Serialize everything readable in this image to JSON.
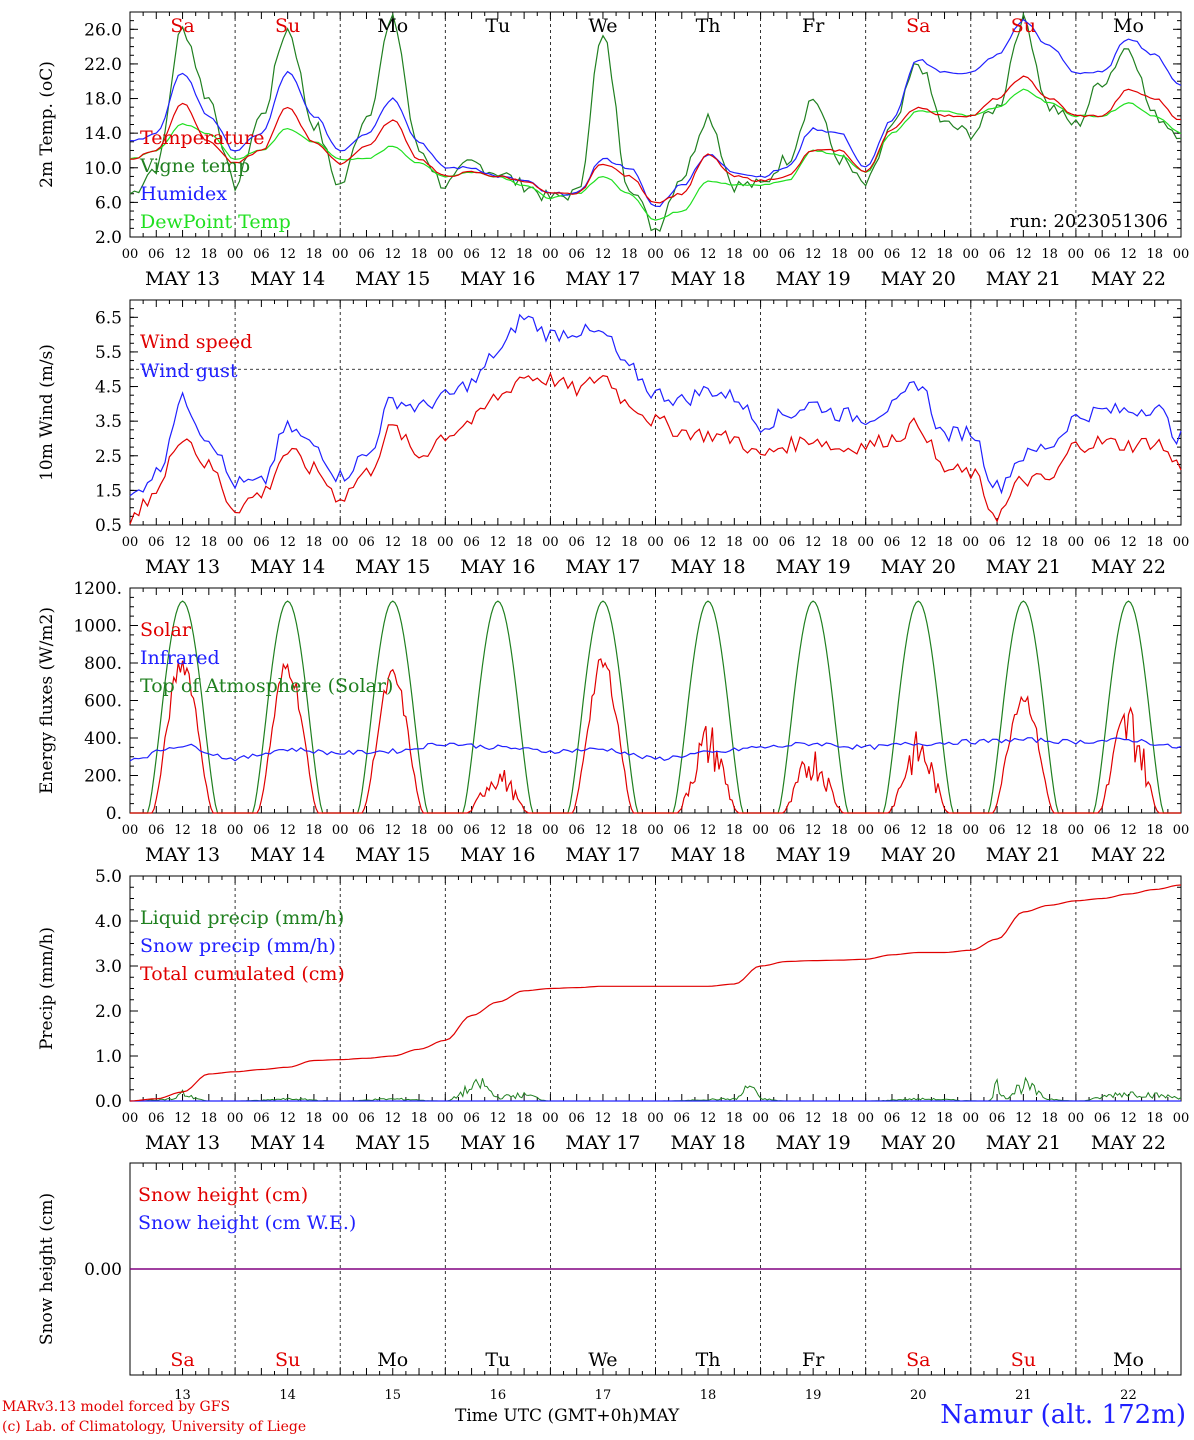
{
  "run_label": "run: 2023051306",
  "days": [
    "MAY 13",
    "MAY 14",
    "MAY 15",
    "MAY 16",
    "MAY 17",
    "MAY 18",
    "MAY 19",
    "MAY 20",
    "MAY 21",
    "MAY 22"
  ],
  "weekdays": [
    "Sa",
    "Su",
    "Mo",
    "Tu",
    "We",
    "Th",
    "Fr",
    "Sa",
    "Su",
    "Mo"
  ],
  "weekday_colors": [
    "#e00000",
    "#e00000",
    "#000000",
    "#000000",
    "#000000",
    "#000000",
    "#000000",
    "#e00000",
    "#e00000",
    "#000000"
  ],
  "hour_ticks": [
    "00",
    "06",
    "12",
    "18"
  ],
  "bottom_day_numbers": [
    "13",
    "14",
    "15",
    "16",
    "17",
    "18",
    "19",
    "20",
    "21",
    "22"
  ],
  "x_axis_title": "Time UTC (GMT+0h)",
  "month_label": "MAY",
  "footer": {
    "credit_line1": "MARv3.13 model forced by GFS",
    "credit_line2": "(c) Lab. of Climatology, University of Liege",
    "station": "Namur (alt. 172m)"
  },
  "colors": {
    "red": "#e00000",
    "green": "#208020",
    "blue": "#2020ff",
    "lightgreen": "#20e020",
    "purple": "#800080"
  },
  "chart_data": [
    {
      "type": "line",
      "ylabel": "2m Temp. (oC)",
      "ylim": [
        2.0,
        28.0
      ],
      "yticks": [
        "2.0",
        "6.0",
        "10.0",
        "14.0",
        "18.0",
        "22.0",
        "26.0"
      ],
      "x_unit": "hours since May 13 00 UTC",
      "series": [
        {
          "name": "Temperature",
          "color": "#e00000",
          "x": [
            0,
            6,
            12,
            18,
            24,
            30,
            36,
            42,
            48,
            54,
            60,
            66,
            72,
            78,
            84,
            90,
            96,
            102,
            108,
            114,
            120,
            126,
            132,
            138,
            144,
            150,
            156,
            162,
            168,
            174,
            180,
            186,
            192,
            198,
            204,
            210,
            216,
            222,
            228,
            234,
            240
          ],
          "values": [
            11,
            12,
            17.5,
            13,
            10.5,
            12,
            17,
            13,
            10.5,
            12.5,
            15.5,
            11,
            9,
            9.5,
            9,
            8.5,
            7,
            7,
            10.5,
            9,
            6,
            7,
            11.5,
            9,
            8.5,
            9,
            12,
            12,
            9.5,
            14.5,
            17,
            16,
            16,
            18,
            20.5,
            18,
            16,
            16,
            19,
            18,
            15.5
          ]
        },
        {
          "name": "Vigne temp",
          "color": "#208020",
          "x": [
            0,
            6,
            12,
            18,
            24,
            30,
            36,
            42,
            48,
            54,
            60,
            66,
            72,
            78,
            84,
            90,
            96,
            102,
            108,
            114,
            120,
            126,
            132,
            138,
            144,
            150,
            156,
            162,
            168,
            174,
            180,
            186,
            192,
            198,
            204,
            210,
            216,
            222,
            228,
            234,
            240
          ],
          "values": [
            7,
            10,
            26,
            18,
            8,
            16,
            26,
            15,
            8,
            16,
            27,
            12,
            8,
            10.5,
            9.5,
            8,
            6.5,
            7,
            25,
            8,
            3,
            9,
            16,
            8,
            8,
            11,
            18,
            11,
            8,
            14.5,
            22,
            15,
            14,
            17,
            27,
            17,
            15,
            20,
            24,
            16,
            14
          ]
        },
        {
          "name": "Humidex",
          "color": "#2020ff",
          "x": [
            0,
            6,
            12,
            18,
            24,
            30,
            36,
            42,
            48,
            54,
            60,
            66,
            72,
            78,
            84,
            90,
            96,
            102,
            108,
            114,
            120,
            126,
            132,
            138,
            144,
            150,
            156,
            162,
            168,
            174,
            180,
            186,
            192,
            198,
            204,
            210,
            216,
            222,
            228,
            234,
            240
          ],
          "values": [
            13,
            14,
            21,
            16,
            12,
            14,
            21,
            16,
            12,
            14,
            18,
            13,
            10,
            10,
            9,
            8.5,
            7,
            7,
            11,
            10,
            5.5,
            8,
            11.5,
            9.5,
            9,
            10,
            14.5,
            14,
            10,
            15.5,
            22.5,
            21,
            21,
            23,
            27,
            24,
            21,
            21,
            25,
            23,
            19.5
          ]
        },
        {
          "name": "DewPoint Temp",
          "color": "#20e020",
          "x": [
            0,
            6,
            12,
            18,
            24,
            30,
            36,
            42,
            48,
            54,
            60,
            66,
            72,
            78,
            84,
            90,
            96,
            102,
            108,
            114,
            120,
            126,
            132,
            138,
            144,
            150,
            156,
            162,
            168,
            174,
            180,
            186,
            192,
            198,
            204,
            210,
            216,
            222,
            228,
            234,
            240
          ],
          "values": [
            11,
            12,
            15,
            14,
            11,
            12,
            14.5,
            13,
            11,
            11,
            12.5,
            10.5,
            9,
            9.5,
            9,
            8,
            6.5,
            7,
            9,
            7,
            4,
            5,
            8.5,
            8,
            8,
            8.5,
            12,
            11.5,
            9.5,
            14,
            16.5,
            16.5,
            16,
            17,
            19,
            17.5,
            16,
            16,
            17.5,
            16,
            14
          ]
        }
      ],
      "annotation": "run: 2023051306"
    },
    {
      "type": "line",
      "ylabel": "10m Wind (m/s)",
      "ylim": [
        0.5,
        7.0
      ],
      "yticks": [
        "0.5",
        "1.5",
        "2.5",
        "3.5",
        "4.5",
        "5.5",
        "6.5"
      ],
      "reference_line": 5.0,
      "series": [
        {
          "name": "Wind speed",
          "color": "#e00000",
          "x": [
            0,
            6,
            12,
            18,
            24,
            30,
            36,
            42,
            48,
            54,
            60,
            66,
            72,
            78,
            84,
            90,
            96,
            102,
            108,
            114,
            120,
            126,
            132,
            138,
            144,
            150,
            156,
            162,
            168,
            174,
            180,
            186,
            192,
            198,
            204,
            210,
            216,
            222,
            228,
            234,
            240
          ],
          "values": [
            0.6,
            1.5,
            3.1,
            2.2,
            1,
            1.4,
            2.6,
            2.1,
            1.3,
            2,
            3.3,
            2.5,
            3.1,
            3.5,
            4.2,
            4.8,
            4.7,
            4.4,
            4.8,
            4.0,
            3.5,
            3.2,
            3.1,
            3.0,
            2.5,
            2.8,
            3.0,
            2.7,
            2.8,
            3.0,
            3.4,
            2.1,
            2.0,
            0.8,
            1.8,
            1.8,
            2.8,
            2.9,
            2.8,
            2.9,
            2.2
          ]
        },
        {
          "name": "Wind gust",
          "color": "#2020ff",
          "x": [
            0,
            6,
            12,
            18,
            24,
            30,
            36,
            42,
            48,
            54,
            60,
            66,
            72,
            78,
            84,
            90,
            96,
            102,
            108,
            114,
            120,
            126,
            132,
            138,
            144,
            150,
            156,
            162,
            168,
            174,
            180,
            186,
            192,
            198,
            204,
            210,
            216,
            222,
            228,
            234,
            240
          ],
          "values": [
            1.3,
            2.0,
            4.1,
            3.0,
            1.7,
            1.7,
            3.3,
            2.8,
            1.9,
            2.5,
            4.1,
            3.9,
            4.2,
            4.6,
            5.5,
            6.5,
            6.0,
            6.1,
            6.0,
            5.0,
            4.3,
            4.1,
            4.4,
            4.2,
            3.4,
            3.7,
            4.0,
            3.7,
            3.6,
            3.9,
            4.6,
            3.1,
            3.2,
            1.6,
            2.5,
            2.8,
            3.6,
            3.8,
            3.8,
            3.9,
            3.0
          ]
        }
      ]
    },
    {
      "type": "line",
      "ylabel": "Energy fluxes (W/m2)",
      "ylim": [
        0,
        1200
      ],
      "yticks": [
        "0.",
        "200.",
        "400.",
        "600.",
        "800.",
        "1000.",
        "1200."
      ],
      "series": [
        {
          "name": "Solar",
          "color": "#e00000",
          "peaks": [
            820,
            800,
            740,
            200,
            810,
            380,
            280,
            340,
            640,
            480
          ]
        },
        {
          "name": "Infrared",
          "color": "#2020ff",
          "x": [
            0,
            12,
            24,
            36,
            48,
            60,
            72,
            84,
            96,
            108,
            120,
            132,
            144,
            156,
            168,
            180,
            192,
            204,
            216,
            228,
            240
          ],
          "values": [
            290,
            360,
            290,
            340,
            320,
            330,
            370,
            350,
            330,
            340,
            290,
            320,
            350,
            370,
            350,
            370,
            380,
            390,
            380,
            390,
            350
          ]
        },
        {
          "name": "Top of Atmosphere (Solar)",
          "color": "#208020",
          "peak": 1130
        }
      ]
    },
    {
      "type": "line",
      "ylabel": "Precip (mm/h)",
      "ylim": [
        0,
        5.0
      ],
      "yticks": [
        "0.0",
        "1.0",
        "2.0",
        "3.0",
        "4.0",
        "5.0"
      ],
      "series": [
        {
          "name": "Liquid precip (mm/h)",
          "color": "#208020",
          "x": [
            0,
            10,
            12,
            14,
            18,
            24,
            30,
            36,
            48,
            60,
            72,
            78,
            80,
            84,
            90,
            96,
            120,
            138,
            142,
            144,
            150,
            168,
            180,
            196,
            198,
            200,
            204,
            210,
            216,
            228,
            240
          ],
          "values": [
            0,
            0.05,
            0.2,
            0.1,
            0,
            0,
            0.02,
            0.05,
            0,
            0.05,
            0,
            0.3,
            0.45,
            0.1,
            0.15,
            0,
            0,
            0.05,
            0.4,
            0.05,
            0,
            0,
            0.05,
            0,
            0.4,
            0.1,
            0.4,
            0.05,
            0,
            0.2,
            0.1
          ]
        },
        {
          "name": "Snow precip (mm/h)",
          "color": "#2020ff",
          "x": [
            0,
            240
          ],
          "values": [
            0,
            0
          ]
        },
        {
          "name": "Total cumulated (cm)",
          "color": "#e00000",
          "x": [
            0,
            6,
            12,
            18,
            24,
            30,
            36,
            42,
            48,
            54,
            60,
            66,
            72,
            78,
            84,
            90,
            96,
            102,
            108,
            114,
            120,
            126,
            132,
            138,
            144,
            150,
            156,
            162,
            168,
            174,
            180,
            186,
            192,
            198,
            204,
            210,
            216,
            222,
            228,
            234,
            240
          ],
          "values": [
            0,
            0.05,
            0.2,
            0.6,
            0.65,
            0.7,
            0.75,
            0.9,
            0.92,
            0.95,
            1.0,
            1.15,
            1.35,
            1.9,
            2.2,
            2.45,
            2.5,
            2.52,
            2.55,
            2.55,
            2.55,
            2.55,
            2.55,
            2.6,
            3.0,
            3.1,
            3.12,
            3.13,
            3.15,
            3.25,
            3.3,
            3.3,
            3.35,
            3.6,
            4.2,
            4.35,
            4.45,
            4.5,
            4.6,
            4.7,
            4.8
          ]
        }
      ]
    },
    {
      "type": "line",
      "ylabel": "Snow height (cm)",
      "ylim": [
        -1,
        1
      ],
      "yticks": [
        "0.00"
      ],
      "series": [
        {
          "name": "Snow height (cm)",
          "color": "#e00000",
          "x": [
            0,
            240
          ],
          "values": [
            0,
            0
          ]
        },
        {
          "name": "Snow height (cm W.E.)",
          "color": "#2020ff",
          "x": [
            0,
            240
          ],
          "values": [
            0,
            0
          ]
        }
      ]
    }
  ]
}
